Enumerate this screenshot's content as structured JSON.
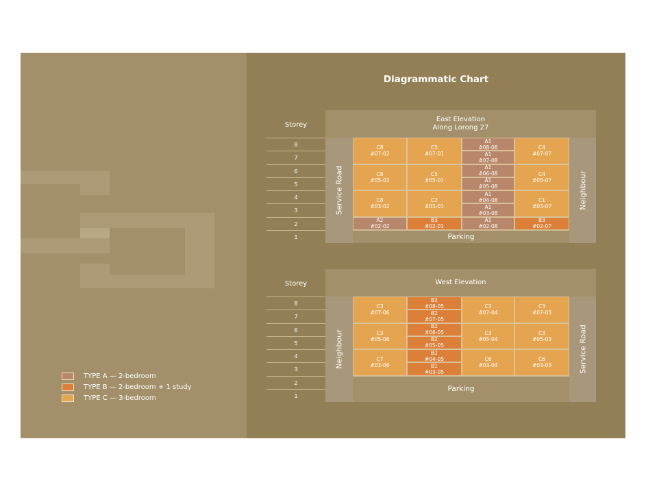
{
  "title": "Diagrammatic Chart",
  "colors": {
    "A": "#b8866a",
    "B": "#dc7f39",
    "C": "#e5a550"
  },
  "legend": [
    {
      "type": "A",
      "label": "TYPE A — 2-bedroom"
    },
    {
      "type": "B",
      "label": "TYPE B — 2-bedroom + 1 study"
    },
    {
      "type": "C",
      "label": "TYPE C — 3-bedroom"
    }
  ],
  "elevations": [
    {
      "id": "east",
      "storey_label": "Storey",
      "title_lines": [
        "East Elevation",
        "Along Lorong 27"
      ],
      "left_side": "Service Road",
      "right_side": "Neighbour",
      "storeys": [
        "8",
        "7",
        "6",
        "5",
        "4",
        "3",
        "2",
        "1"
      ],
      "parking": {
        "label": "Parking",
        "top": 1,
        "bottom": 1
      },
      "cells": [
        {
          "col": 0,
          "top": 8,
          "bottom": 7,
          "type": "C",
          "name": "C8",
          "unit": "#07-02"
        },
        {
          "col": 0,
          "top": 6,
          "bottom": 5,
          "type": "C",
          "name": "C8",
          "unit": "#05-02"
        },
        {
          "col": 0,
          "top": 4,
          "bottom": 3,
          "type": "C",
          "name": "C8",
          "unit": "#03-02"
        },
        {
          "col": 0,
          "top": 2,
          "bottom": 2,
          "type": "A",
          "name": "A2",
          "unit": "#02-02"
        },
        {
          "col": 1,
          "top": 8,
          "bottom": 7,
          "type": "C",
          "name": "C5",
          "unit": "#07-01"
        },
        {
          "col": 1,
          "top": 6,
          "bottom": 5,
          "type": "C",
          "name": "C5",
          "unit": "#05-01"
        },
        {
          "col": 1,
          "top": 4,
          "bottom": 3,
          "type": "C",
          "name": "C2",
          "unit": "#03-01"
        },
        {
          "col": 1,
          "top": 2,
          "bottom": 2,
          "type": "B",
          "name": "B3",
          "unit": "#02-01"
        },
        {
          "col": 2,
          "top": 8,
          "bottom": 8,
          "type": "A",
          "name": "A1",
          "unit": "#08-08"
        },
        {
          "col": 2,
          "top": 7,
          "bottom": 7,
          "type": "A",
          "name": "A1",
          "unit": "#07-08"
        },
        {
          "col": 2,
          "top": 6,
          "bottom": 6,
          "type": "A",
          "name": "A1",
          "unit": "#06-08"
        },
        {
          "col": 2,
          "top": 5,
          "bottom": 5,
          "type": "A",
          "name": "A1",
          "unit": "#05-08"
        },
        {
          "col": 2,
          "top": 4,
          "bottom": 4,
          "type": "A",
          "name": "A1",
          "unit": "#04-08"
        },
        {
          "col": 2,
          "top": 3,
          "bottom": 3,
          "type": "A",
          "name": "A1",
          "unit": "#03-08"
        },
        {
          "col": 2,
          "top": 2,
          "bottom": 2,
          "type": "A",
          "name": "A1",
          "unit": "#02-08"
        },
        {
          "col": 3,
          "top": 8,
          "bottom": 7,
          "type": "C",
          "name": "C4",
          "unit": "#07-07"
        },
        {
          "col": 3,
          "top": 6,
          "bottom": 5,
          "type": "C",
          "name": "C4",
          "unit": "#05-07"
        },
        {
          "col": 3,
          "top": 4,
          "bottom": 3,
          "type": "C",
          "name": "C1",
          "unit": "#03-07"
        },
        {
          "col": 3,
          "top": 2,
          "bottom": 2,
          "type": "B",
          "name": "B3",
          "unit": "#02-07"
        }
      ]
    },
    {
      "id": "west",
      "storey_label": "Storey",
      "title_lines": [
        "West Elevation"
      ],
      "left_side": "Neighbour",
      "right_side": "Service Road",
      "storeys": [
        "8",
        "7",
        "6",
        "5",
        "4",
        "3",
        "2",
        "1"
      ],
      "parking": {
        "label": "Parking",
        "top": 2,
        "bottom": 1
      },
      "cells": [
        {
          "col": 0,
          "top": 8,
          "bottom": 7,
          "type": "C",
          "name": "C3",
          "unit": "#07-06"
        },
        {
          "col": 0,
          "top": 6,
          "bottom": 5,
          "type": "C",
          "name": "C3",
          "unit": "#05-06"
        },
        {
          "col": 0,
          "top": 4,
          "bottom": 3,
          "type": "C",
          "name": "C7",
          "unit": "#03-06"
        },
        {
          "col": 1,
          "top": 8,
          "bottom": 8,
          "type": "B",
          "name": "B2",
          "unit": "#08-05"
        },
        {
          "col": 1,
          "top": 7,
          "bottom": 7,
          "type": "B",
          "name": "B2",
          "unit": "#07-05"
        },
        {
          "col": 1,
          "top": 6,
          "bottom": 6,
          "type": "B",
          "name": "B2",
          "unit": "#06-05"
        },
        {
          "col": 1,
          "top": 5,
          "bottom": 5,
          "type": "B",
          "name": "B2",
          "unit": "#05-05"
        },
        {
          "col": 1,
          "top": 4,
          "bottom": 4,
          "type": "B",
          "name": "B2",
          "unit": "#04-05"
        },
        {
          "col": 1,
          "top": 3,
          "bottom": 3,
          "type": "B",
          "name": "B1",
          "unit": "#03-05"
        },
        {
          "col": 2,
          "top": 8,
          "bottom": 7,
          "type": "C",
          "name": "C3",
          "unit": "#07-04"
        },
        {
          "col": 2,
          "top": 6,
          "bottom": 5,
          "type": "C",
          "name": "C3",
          "unit": "#05-04"
        },
        {
          "col": 2,
          "top": 4,
          "bottom": 3,
          "type": "C",
          "name": "C6",
          "unit": "#03-04"
        },
        {
          "col": 3,
          "top": 8,
          "bottom": 7,
          "type": "C",
          "name": "C3",
          "unit": "#07-03"
        },
        {
          "col": 3,
          "top": 6,
          "bottom": 5,
          "type": "C",
          "name": "C3",
          "unit": "#05-03"
        },
        {
          "col": 3,
          "top": 4,
          "bottom": 3,
          "type": "C",
          "name": "C6",
          "unit": "#03-03"
        }
      ]
    }
  ]
}
